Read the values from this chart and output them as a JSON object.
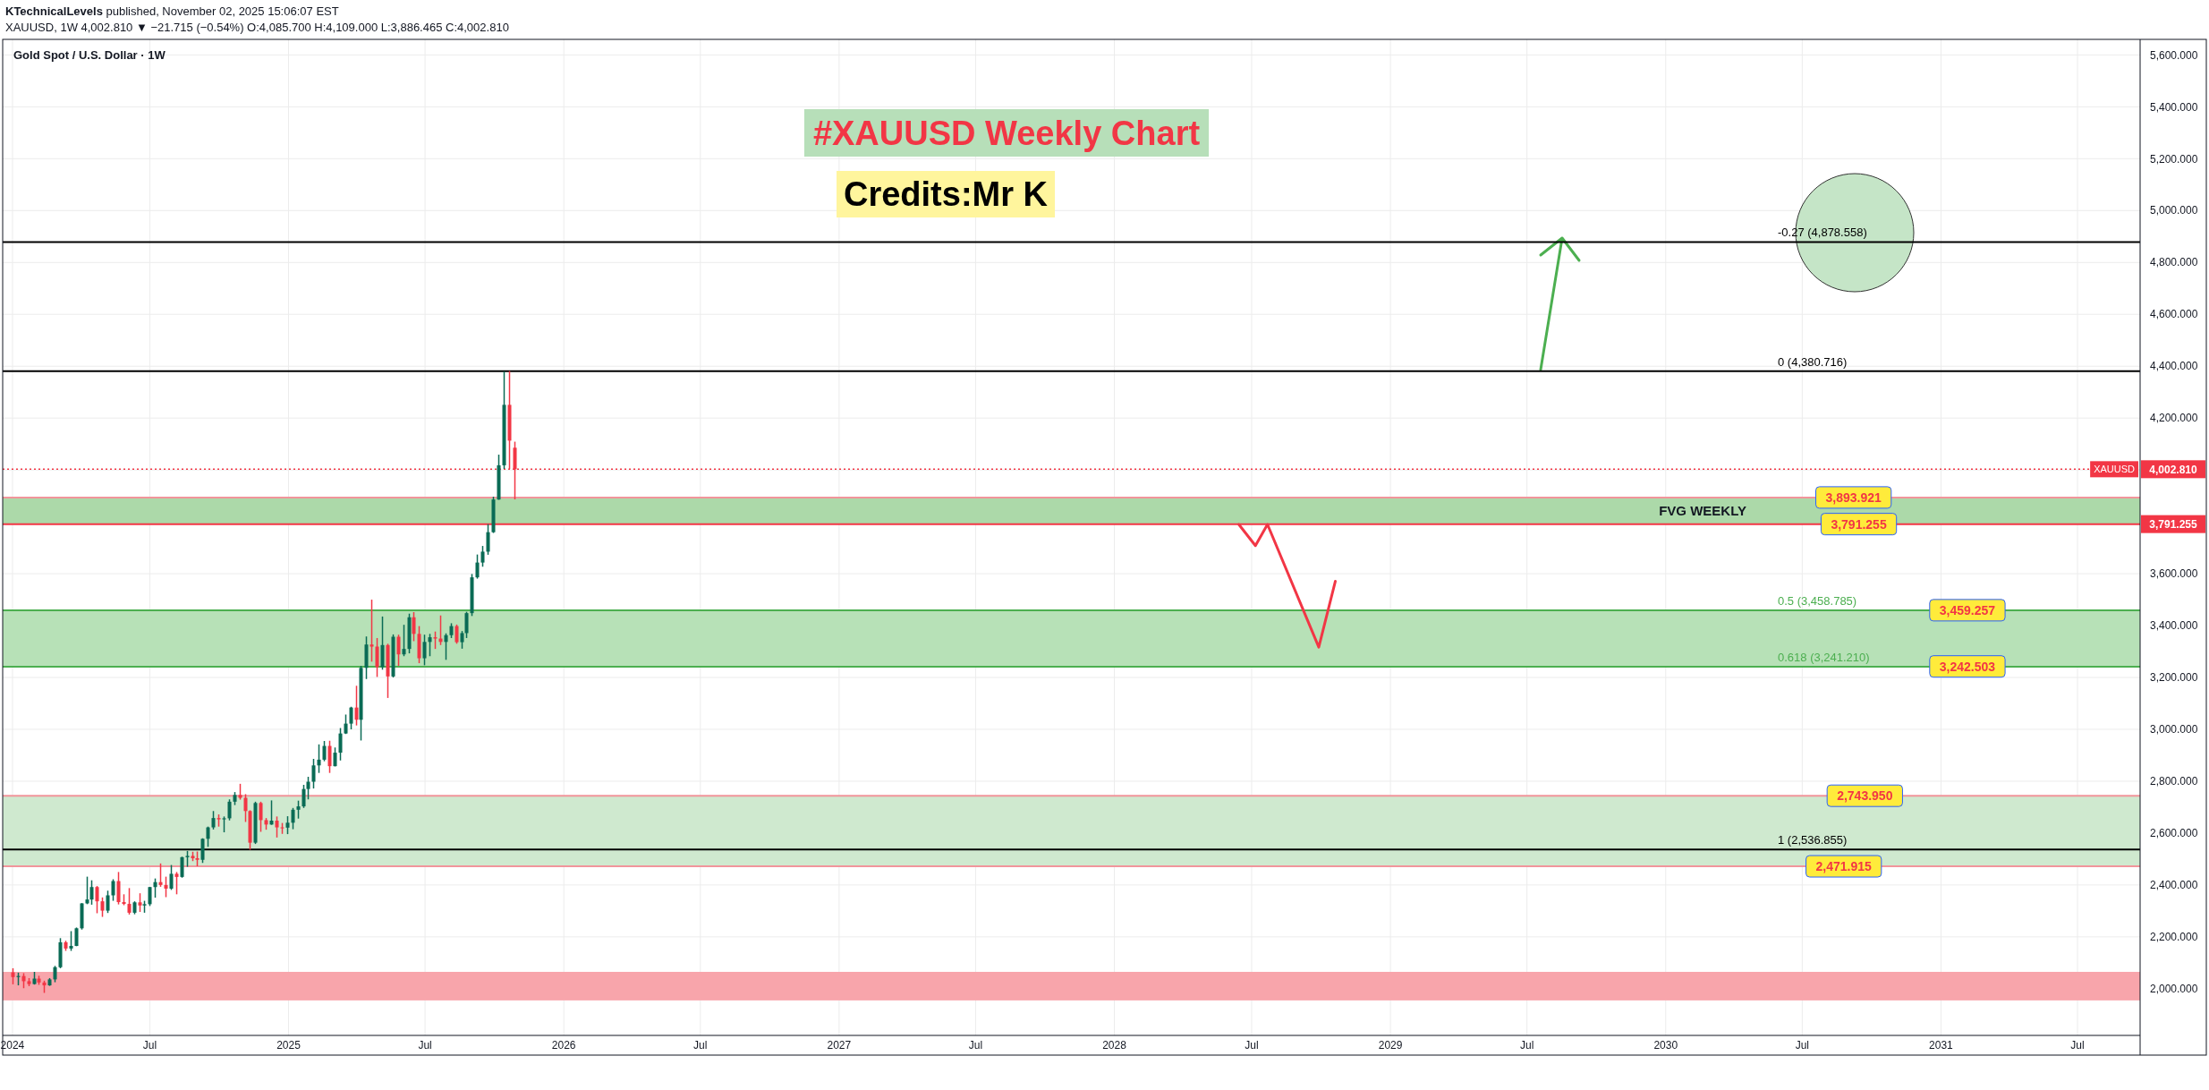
{
  "chart_data": {
    "type": "candlestick",
    "title": "#XAUUSD Weekly Chart",
    "subtitle": "Credits:Mr K",
    "x": [
      "2024-01-01",
      "2024-01-08",
      "2024-01-15",
      "2024-01-22",
      "2024-01-29",
      "2024-02-05",
      "2024-02-12",
      "2024-02-19",
      "2024-02-26",
      "2024-03-04",
      "2024-03-11",
      "2024-03-18",
      "2024-03-25",
      "2024-04-01",
      "2024-04-08",
      "2024-04-15",
      "2024-04-22",
      "2024-04-29",
      "2024-05-06",
      "2024-05-13",
      "2024-05-20",
      "2024-05-27",
      "2024-06-03",
      "2024-06-10",
      "2024-06-17",
      "2024-06-24",
      "2024-07-01",
      "2024-07-08",
      "2024-07-15",
      "2024-07-22",
      "2024-07-29",
      "2024-08-05",
      "2024-08-12",
      "2024-08-19",
      "2024-08-26",
      "2024-09-02",
      "2024-09-09",
      "2024-09-16",
      "2024-09-23",
      "2024-09-30",
      "2024-10-07",
      "2024-10-14",
      "2024-10-21",
      "2024-10-28",
      "2024-11-04",
      "2024-11-11",
      "2024-11-18",
      "2024-11-25",
      "2024-12-02",
      "2024-12-09",
      "2024-12-16",
      "2024-12-23",
      "2024-12-30",
      "2025-01-06",
      "2025-01-13",
      "2025-01-20",
      "2025-01-27",
      "2025-02-03",
      "2025-02-10",
      "2025-02-17",
      "2025-02-24",
      "2025-03-03",
      "2025-03-10",
      "2025-03-17",
      "2025-03-24",
      "2025-03-31",
      "2025-04-07",
      "2025-04-14",
      "2025-04-21",
      "2025-04-28",
      "2025-05-05",
      "2025-05-12",
      "2025-05-19",
      "2025-05-26",
      "2025-06-02",
      "2025-06-09",
      "2025-06-16",
      "2025-06-23",
      "2025-06-30",
      "2025-07-07",
      "2025-07-14",
      "2025-07-21",
      "2025-07-28",
      "2025-08-04",
      "2025-08-11",
      "2025-08-18",
      "2025-08-25",
      "2025-09-01",
      "2025-09-08",
      "2025-09-15",
      "2025-09-22",
      "2025-09-29",
      "2025-10-06",
      "2025-10-13",
      "2025-10-20",
      "2025-10-27"
    ],
    "ohlc": [
      [
        2063,
        2079,
        2017,
        2045
      ],
      [
        2045,
        2062,
        2013,
        2049
      ],
      [
        2049,
        2060,
        2002,
        2029
      ],
      [
        2029,
        2041,
        2010,
        2018
      ],
      [
        2018,
        2065,
        2016,
        2039
      ],
      [
        2039,
        2050,
        2015,
        2024
      ],
      [
        2024,
        2031,
        1984,
        2013
      ],
      [
        2013,
        2041,
        2011,
        2036
      ],
      [
        2036,
        2088,
        2025,
        2083
      ],
      [
        2083,
        2195,
        2079,
        2179
      ],
      [
        2179,
        2185,
        2146,
        2155
      ],
      [
        2155,
        2222,
        2146,
        2165
      ],
      [
        2165,
        2236,
        2164,
        2233
      ],
      [
        2233,
        2330,
        2228,
        2329
      ],
      [
        2329,
        2432,
        2326,
        2344
      ],
      [
        2344,
        2418,
        2324,
        2392
      ],
      [
        2392,
        2396,
        2291,
        2337
      ],
      [
        2337,
        2352,
        2277,
        2301
      ],
      [
        2301,
        2378,
        2292,
        2360
      ],
      [
        2360,
        2422,
        2339,
        2415
      ],
      [
        2415,
        2450,
        2325,
        2334
      ],
      [
        2334,
        2364,
        2322,
        2327
      ],
      [
        2327,
        2388,
        2286,
        2293
      ],
      [
        2293,
        2337,
        2287,
        2333
      ],
      [
        2333,
        2368,
        2296,
        2321
      ],
      [
        2321,
        2339,
        2293,
        2326
      ],
      [
        2326,
        2392,
        2319,
        2392
      ],
      [
        2392,
        2425,
        2351,
        2411
      ],
      [
        2411,
        2483,
        2393,
        2400
      ],
      [
        2400,
        2432,
        2353,
        2386
      ],
      [
        2386,
        2477,
        2381,
        2443
      ],
      [
        2443,
        2450,
        2364,
        2431
      ],
      [
        2431,
        2509,
        2428,
        2507
      ],
      [
        2507,
        2531,
        2470,
        2512
      ],
      [
        2512,
        2528,
        2492,
        2503
      ],
      [
        2503,
        2529,
        2472,
        2497
      ],
      [
        2497,
        2580,
        2485,
        2578
      ],
      [
        2578,
        2625,
        2547,
        2622
      ],
      [
        2622,
        2685,
        2614,
        2658
      ],
      [
        2658,
        2672,
        2625,
        2653
      ],
      [
        2653,
        2664,
        2603,
        2657
      ],
      [
        2657,
        2730,
        2649,
        2721
      ],
      [
        2721,
        2758,
        2708,
        2747
      ],
      [
        2747,
        2790,
        2729,
        2736
      ],
      [
        2736,
        2750,
        2643,
        2685
      ],
      [
        2685,
        2688,
        2536,
        2563
      ],
      [
        2563,
        2721,
        2558,
        2716
      ],
      [
        2716,
        2721,
        2605,
        2650
      ],
      [
        2650,
        2658,
        2613,
        2633
      ],
      [
        2633,
        2726,
        2632,
        2648
      ],
      [
        2648,
        2664,
        2583,
        2622
      ],
      [
        2622,
        2639,
        2597,
        2621
      ],
      [
        2621,
        2665,
        2596,
        2640
      ],
      [
        2640,
        2697,
        2615,
        2690
      ],
      [
        2690,
        2725,
        2656,
        2703
      ],
      [
        2703,
        2786,
        2697,
        2770
      ],
      [
        2770,
        2817,
        2730,
        2798
      ],
      [
        2798,
        2886,
        2772,
        2861
      ],
      [
        2861,
        2942,
        2832,
        2883
      ],
      [
        2883,
        2955,
        2877,
        2936
      ],
      [
        2936,
        2956,
        2832,
        2858
      ],
      [
        2858,
        2930,
        2857,
        2910
      ],
      [
        2910,
        3005,
        2880,
        2984
      ],
      [
        2984,
        3057,
        2982,
        3022
      ],
      [
        3022,
        3087,
        3000,
        3084
      ],
      [
        3084,
        3168,
        3015,
        3037
      ],
      [
        3037,
        3245,
        2957,
        3237
      ],
      [
        3237,
        3358,
        3194,
        3327
      ],
      [
        3327,
        3500,
        3261,
        3319
      ],
      [
        3319,
        3352,
        3202,
        3240
      ],
      [
        3240,
        3435,
        3230,
        3325
      ],
      [
        3325,
        3330,
        3121,
        3204
      ],
      [
        3204,
        3366,
        3200,
        3357
      ],
      [
        3357,
        3365,
        3245,
        3289
      ],
      [
        3289,
        3403,
        3282,
        3310
      ],
      [
        3310,
        3446,
        3293,
        3432
      ],
      [
        3432,
        3452,
        3340,
        3368
      ],
      [
        3368,
        3398,
        3255,
        3274
      ],
      [
        3274,
        3365,
        3247,
        3337
      ],
      [
        3337,
        3368,
        3282,
        3355
      ],
      [
        3355,
        3377,
        3310,
        3350
      ],
      [
        3350,
        3439,
        3325,
        3337
      ],
      [
        3337,
        3370,
        3268,
        3363
      ],
      [
        3363,
        3409,
        3352,
        3398
      ],
      [
        3398,
        3404,
        3330,
        3336
      ],
      [
        3336,
        3379,
        3311,
        3371
      ],
      [
        3371,
        3453,
        3352,
        3448
      ],
      [
        3448,
        3599,
        3437,
        3586
      ],
      [
        3586,
        3674,
        3581,
        3643
      ],
      [
        3643,
        3707,
        3627,
        3685
      ],
      [
        3685,
        3791,
        3673,
        3760
      ],
      [
        3760,
        3897,
        3757,
        3886
      ],
      [
        3886,
        4059,
        3885,
        4018
      ],
      [
        4018,
        4379,
        4004,
        4251
      ],
      [
        4251,
        4381,
        4004,
        4113
      ],
      [
        4085.7,
        4109,
        3886.465,
        4002.81
      ]
    ],
    "series": [
      {
        "type": "line",
        "color": "#f23645",
        "x": [
          "2028-06-14",
          "2028-07-06",
          "2028-07-22",
          "2028-09-28",
          "2028-10-20"
        ],
        "values": [
          3790,
          3708,
          3790,
          3317,
          3571
        ]
      }
    ],
    "xlim": [
      "2023-12-19",
      "2031-09-22"
    ],
    "xticks": [
      {
        "value": "2024-01-01",
        "label": "2024"
      },
      {
        "value": "2024-07-01",
        "label": "Jul"
      },
      {
        "value": "2025-01-01",
        "label": "2025"
      },
      {
        "value": "2025-07-01",
        "label": "Jul"
      },
      {
        "value": "2026-01-01",
        "label": "2026"
      },
      {
        "value": "2026-07-01",
        "label": "Jul"
      },
      {
        "value": "2027-01-01",
        "label": "2027"
      },
      {
        "value": "2027-07-01",
        "label": "Jul"
      },
      {
        "value": "2028-01-01",
        "label": "2028"
      },
      {
        "value": "2028-07-01",
        "label": "Jul"
      },
      {
        "value": "2029-01-01",
        "label": "2029"
      },
      {
        "value": "2029-07-01",
        "label": "Jul"
      },
      {
        "value": "2030-01-01",
        "label": "2030"
      },
      {
        "value": "2030-07-01",
        "label": "Jul"
      },
      {
        "value": "2031-01-01",
        "label": "2031"
      },
      {
        "value": "2031-07-01",
        "label": "Jul"
      }
    ],
    "ylim": [
      1820,
      5660
    ],
    "yticks": [
      {
        "value": 2000,
        "label": "2,000.000"
      },
      {
        "value": 2200,
        "label": "2,200.000"
      },
      {
        "value": 2400,
        "label": "2,400.000"
      },
      {
        "value": 2600,
        "label": "2,600.000"
      },
      {
        "value": 2800,
        "label": "2,800.000"
      },
      {
        "value": 3000,
        "label": "3,000.000"
      },
      {
        "value": 3200,
        "label": "3,200.000"
      },
      {
        "value": 3400,
        "label": "3,400.000"
      },
      {
        "value": 3600,
        "label": "3,600.000"
      },
      {
        "value": 3800,
        "label": null
      },
      {
        "value": 4000,
        "label": null
      },
      {
        "value": 4200,
        "label": "4,200.000"
      },
      {
        "value": 4400,
        "label": "4,400.000"
      },
      {
        "value": 4600,
        "label": "4,600.000"
      },
      {
        "value": 4800,
        "label": "4,800.000"
      },
      {
        "value": 5000,
        "label": "5,000.000"
      },
      {
        "value": 5200,
        "label": "5,200.000"
      },
      {
        "value": 5400,
        "label": "5,400.000"
      },
      {
        "value": 5600,
        "label": "5,600.000"
      }
    ],
    "grid": true,
    "bands": [
      {
        "axis": "y",
        "from": 3791.255,
        "to": 3893.921,
        "label": "FVG WEEKLY",
        "color": "#acd9a9"
      },
      {
        "axis": "y",
        "from": 3242.503,
        "to": 3459.257,
        "color": "#b7e1b7"
      },
      {
        "axis": "y",
        "from": 2471.915,
        "to": 2743.95,
        "color": "#cfe9cf"
      },
      {
        "axis": "y",
        "from": 1955,
        "to": 2065,
        "color": "#f8a5ab"
      }
    ],
    "ref_lines": [
      {
        "axis": "y",
        "value": 4878.558,
        "label": "-0.27 (4,878.558)",
        "color": "#000000"
      },
      {
        "axis": "y",
        "value": 4380.716,
        "label": "0 (4,380.716)",
        "color": "#000000"
      },
      {
        "axis": "y",
        "value": 3458.785,
        "label": "0.5 (3,458.785)",
        "color": "#4caf50"
      },
      {
        "axis": "y",
        "value": 3241.21,
        "label": "0.618 (3,241.210)",
        "color": "#4caf50"
      },
      {
        "axis": "y",
        "value": 2536.855,
        "label": "1 (2,536.855)",
        "color": "#000000"
      },
      {
        "axis": "y",
        "value": 4002.81,
        "label": "4,002.810",
        "color": "#f23645",
        "line_style": "dotted"
      },
      {
        "axis": "y",
        "value": 3893.921,
        "color": "#f1959b"
      },
      {
        "axis": "y",
        "value": 3791.255,
        "label": "3,791.255",
        "color": "#f23645"
      },
      {
        "axis": "y",
        "value": 2743.95,
        "color": "#f1959b"
      },
      {
        "axis": "y",
        "value": 2471.915,
        "color": "#f1959b"
      }
    ],
    "annotations": [
      "KTechnicalLevels published, November 02, 2025 15:06:07 EST",
      "XAUUSD, 1W 4,002.810 ▼ −21.715 (−0.54%) O:4,085.700 H:4,109.000 L:3,886.465 C:4,002.810",
      "Gold Spot / U.S. Dollar · 1W",
      "XAUUSD",
      {
        "text": "3,893.921",
        "x": "2030-07-19",
        "y": 3893.921
      },
      {
        "text": "3,791.255",
        "x": "2030-07-26",
        "y": 3791.255
      },
      {
        "text": "3,459.257",
        "x": "2030-12-17",
        "y": 3459.257
      },
      {
        "text": "3,242.503",
        "x": "2030-12-17",
        "y": 3242.503
      },
      {
        "text": "2,743.950",
        "x": "2030-08-03",
        "y": 2743.95
      },
      {
        "text": "2,471.915",
        "x": "2030-07-06",
        "y": 2471.915
      }
    ]
  }
}
